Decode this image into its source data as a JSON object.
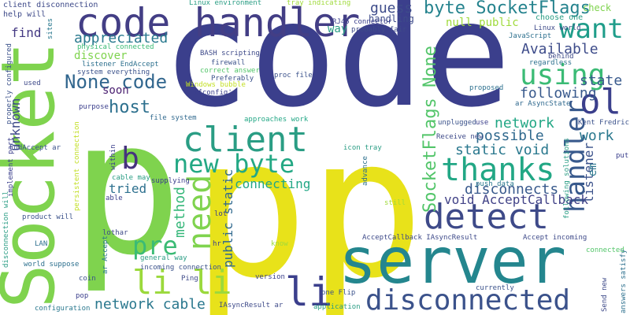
{
  "words": [
    {
      "text": "code",
      "color": "#3b3f8c"
    },
    {
      "text": "pp",
      "color": "#e8e21a"
    },
    {
      "text": "p",
      "color": "#7fd34e"
    },
    {
      "text": "Socket",
      "color": "#7fd34e"
    },
    {
      "text": "code handler",
      "color": "#433e85"
    },
    {
      "text": "server",
      "color": "#24868e"
    },
    {
      "text": "disconnected",
      "color": "#3b528b"
    },
    {
      "text": "client",
      "color": "#2a9d84"
    },
    {
      "text": "detect",
      "color": "#3e4a89"
    },
    {
      "text": "need",
      "color": "#7fd34e"
    },
    {
      "text": "li li",
      "color": "#9bd93c"
    },
    {
      "text": "li",
      "color": "#3b3f8c"
    },
    {
      "text": "new byte",
      "color": "#23a884"
    },
    {
      "text": "thanks",
      "color": "#22a785"
    },
    {
      "text": "handler",
      "color": "#38598c"
    },
    {
      "text": "want",
      "color": "#1f9d8a"
    },
    {
      "text": "using",
      "color": "#3bbb75"
    },
    {
      "text": "ol",
      "color": "#3b3f8c"
    },
    {
      "text": "byte SocketFlags",
      "color": "#25838e"
    },
    {
      "text": "SocketFlags None",
      "color": "#52c569"
    },
    {
      "text": "None code",
      "color": "#31668e"
    },
    {
      "text": "pre",
      "color": "#3bbb75"
    },
    {
      "text": "b",
      "color": "#46337e"
    },
    {
      "text": "host",
      "color": "#2d708e"
    },
    {
      "text": "appreciated",
      "color": "#29798e"
    },
    {
      "text": "guess",
      "color": "#3e4c8a"
    },
    {
      "text": "Available",
      "color": "#3e4c8a"
    },
    {
      "text": "state",
      "color": "#38598c"
    },
    {
      "text": "following",
      "color": "#38598c"
    },
    {
      "text": "work",
      "color": "#2a788e"
    },
    {
      "text": "network",
      "color": "#22a785"
    },
    {
      "text": "possible",
      "color": "#30698e"
    },
    {
      "text": "static void",
      "color": "#2a788e"
    },
    {
      "text": "disconnects",
      "color": "#38598c"
    },
    {
      "text": "void AcceptCallback",
      "color": "#414287"
    },
    {
      "text": "connecting",
      "color": "#22a785"
    },
    {
      "text": "tried",
      "color": "#2d708e"
    },
    {
      "text": "network cable",
      "color": "#2a788e"
    },
    {
      "text": "method",
      "color": "#35b779"
    },
    {
      "text": "public static",
      "color": "#30698e"
    },
    {
      "text": "unknown",
      "color": "#3e4a89"
    },
    {
      "text": "listener",
      "color": "#3b528b"
    },
    {
      "text": "em",
      "color": "#2a788e"
    },
    {
      "text": "discover",
      "color": "#7fd34e"
    },
    {
      "text": "find",
      "color": "#443983"
    },
    {
      "text": "soon",
      "color": "#481d6f"
    },
    {
      "text": "null public",
      "color": "#9fda3a"
    },
    {
      "text": "way",
      "color": "#2a9d84"
    },
    {
      "text": "handling",
      "color": "#3e4c8a"
    },
    {
      "text": "client disconnection",
      "color": "#3e4a89"
    },
    {
      "text": "help will",
      "color": "#3e4a89"
    },
    {
      "text": "Linux environment",
      "color": "#2a9d84"
    },
    {
      "text": "tray indicating",
      "color": "#9fda3a"
    },
    {
      "text": "check",
      "color": "#7fd34e"
    },
    {
      "text": "choose one",
      "color": "#2a9d84"
    },
    {
      "text": "RJ45 connector",
      "color": "#3b3f8c"
    },
    {
      "text": "probably fair",
      "color": "#3e4a89"
    },
    {
      "text": "JavaScript",
      "color": "#2d708e"
    },
    {
      "text": "physical connected",
      "color": "#3bbb75"
    },
    {
      "text": "listener EndAccept",
      "color": "#2d708e"
    },
    {
      "text": "system everything",
      "color": "#3b528b"
    },
    {
      "text": "BASH scripting",
      "color": "#3e4a89"
    },
    {
      "text": "firewall",
      "color": "#3b528b"
    },
    {
      "text": "correct answer",
      "color": "#52c569"
    },
    {
      "text": "Preferably",
      "color": "#3b528b"
    },
    {
      "text": "Windows bubble",
      "color": "#c2df23"
    },
    {
      "text": "ifconfig'",
      "color": "#3b3f8c"
    },
    {
      "text": "proc file",
      "color": "#3b528b"
    },
    {
      "text": "proposed",
      "color": "#2d708e"
    },
    {
      "text": "Linux world",
      "color": "#3e4a89"
    },
    {
      "text": "regardless",
      "color": "#2d708e"
    },
    {
      "text": "behind",
      "color": "#3e4a89"
    },
    {
      "text": "ar AsyncState",
      "color": "#30698e"
    },
    {
      "text": "used",
      "color": "#3e4a89"
    },
    {
      "text": "sites",
      "color": "#2a788e"
    },
    {
      "text": "properly configured",
      "color": "#3b528b"
    },
    {
      "text": "purpose",
      "color": "#3b3f8c"
    },
    {
      "text": "file system",
      "color": "#30698e"
    },
    {
      "text": "approaches work",
      "color": "#22a785"
    },
    {
      "text": "unplugged",
      "color": "#3b528b"
    },
    {
      "text": "use",
      "color": "#3b3f8c"
    },
    {
      "text": "Kent Fredric",
      "color": "#3b528b"
    },
    {
      "text": "Receive new",
      "color": "#3e4a89"
    },
    {
      "text": "icon tray",
      "color": "#2a9d84"
    },
    {
      "text": "EndAccept ar",
      "color": "#3b528b"
    },
    {
      "text": "within",
      "color": "#3b3f8c"
    },
    {
      "text": "persistent connection",
      "color": "#c2df23"
    },
    {
      "text": "implement part",
      "color": "#3b3f8c"
    },
    {
      "text": "cable may",
      "color": "#2a9d84"
    },
    {
      "text": "supplying",
      "color": "#3b3f8c"
    },
    {
      "text": "able",
      "color": "#3b3f8c"
    },
    {
      "text": "advance",
      "color": "#2d708e"
    },
    {
      "text": "push data",
      "color": "#2a788e"
    },
    {
      "text": "following solutions",
      "color": "#2a9d84"
    },
    {
      "text": "put",
      "color": "#3b3f8c"
    },
    {
      "text": "still",
      "color": "#9fda3a"
    },
    {
      "text": "product will",
      "color": "#3b528b"
    },
    {
      "text": "lot",
      "color": "#3b3f8c"
    },
    {
      "text": "lothar",
      "color": "#3e4a89"
    },
    {
      "text": "disconnection will",
      "color": "#2a9d84"
    },
    {
      "text": "AcceptCallback IAsyncResult",
      "color": "#3e4a89"
    },
    {
      "text": "Accept incoming",
      "color": "#3e4a89"
    },
    {
      "text": "connected",
      "color": "#52c569"
    },
    {
      "text": "LAN",
      "color": "#2d708e"
    },
    {
      "text": "ar Accept",
      "color": "#2a788e"
    },
    {
      "text": "hr",
      "color": "#3b3f8c"
    },
    {
      "text": "know",
      "color": "#9fda3a"
    },
    {
      "text": "world suppose",
      "color": "#2d708e"
    },
    {
      "text": "general way",
      "color": "#2a9d84"
    },
    {
      "text": "incoming connection",
      "color": "#3b528b"
    },
    {
      "text": "coin",
      "color": "#3b528b"
    },
    {
      "text": "Ping",
      "color": "#3e4a89"
    },
    {
      "text": "version",
      "color": "#3b3f8c"
    },
    {
      "text": "one Flip",
      "color": "#3b528b"
    },
    {
      "text": "currently",
      "color": "#3b528b"
    },
    {
      "text": "Send new",
      "color": "#3e4a89"
    },
    {
      "text": "answers satisfy",
      "color": "#2d708e"
    },
    {
      "text": "pop",
      "color": "#3b3f8c"
    },
    {
      "text": "configuration",
      "color": "#2a788e"
    },
    {
      "text": "IAsyncResult ar",
      "color": "#3e4a89"
    },
    {
      "text": "application",
      "color": "#2a9d84"
    }
  ]
}
